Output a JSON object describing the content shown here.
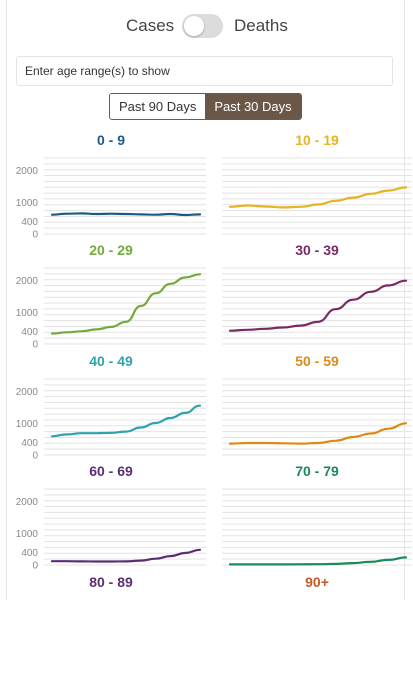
{
  "toggle": {
    "left_label": "Cases",
    "right_label": "Deaths",
    "state": "Cases"
  },
  "age_filter": {
    "placeholder": "Enter age range(s) to show",
    "value": ""
  },
  "range_buttons": [
    {
      "label": "Past 90 Days",
      "active": false
    },
    {
      "label": "Past 30 Days",
      "active": true
    }
  ],
  "colors": {
    "0 - 9": "#1d5a84",
    "10 - 19": "#e7b31f",
    "20 - 29": "#72aa3d",
    "30 - 39": "#7a2a63",
    "40 - 49": "#2fa3ad",
    "50 - 59": "#dd8a16",
    "60 - 69": "#5a2f72",
    "70 - 79": "#1a8a5a",
    "80 - 89": "#5a2f72",
    "90+": "#c45a2a"
  },
  "chart_data": [
    {
      "type": "line",
      "title": "0 - 9",
      "ylim": [
        0,
        2400
      ],
      "yticks": [
        0,
        400,
        1000,
        2000
      ],
      "series": [
        {
          "values": [
            610,
            640,
            650,
            630,
            640,
            630,
            620,
            610,
            630,
            600,
            620
          ]
        }
      ]
    },
    {
      "type": "line",
      "title": "10 - 19",
      "ylim": [
        0,
        2400
      ],
      "yticks": [
        0,
        400,
        1000,
        2000
      ],
      "series": [
        {
          "values": [
            860,
            900,
            870,
            840,
            860,
            930,
            1050,
            1150,
            1270,
            1370,
            1470
          ]
        }
      ]
    },
    {
      "type": "line",
      "title": "20 - 29",
      "ylim": [
        0,
        2400
      ],
      "yticks": [
        0,
        400,
        1000,
        2000
      ],
      "series": [
        {
          "values": [
            330,
            370,
            400,
            460,
            540,
            700,
            1200,
            1600,
            1900,
            2100,
            2200
          ]
        }
      ]
    },
    {
      "type": "line",
      "title": "30 - 39",
      "ylim": [
        0,
        2400
      ],
      "yticks": [
        0,
        400,
        1000,
        2000
      ],
      "series": [
        {
          "values": [
            420,
            450,
            480,
            520,
            580,
            700,
            1100,
            1400,
            1650,
            1850,
            2000
          ]
        }
      ]
    },
    {
      "type": "line",
      "title": "40 - 49",
      "ylim": [
        0,
        2400
      ],
      "yticks": [
        0,
        400,
        1000,
        2000
      ],
      "series": [
        {
          "values": [
            590,
            650,
            690,
            690,
            700,
            740,
            870,
            1010,
            1170,
            1330,
            1560
          ]
        }
      ]
    },
    {
      "type": "line",
      "title": "50 - 59",
      "ylim": [
        0,
        2400
      ],
      "yticks": [
        0,
        400,
        1000,
        2000
      ],
      "series": [
        {
          "values": [
            360,
            380,
            380,
            370,
            360,
            380,
            450,
            570,
            680,
            830,
            1000
          ]
        }
      ]
    },
    {
      "type": "line",
      "title": "60 - 69",
      "ylim": [
        0,
        2400
      ],
      "yticks": [
        0,
        400,
        1000,
        2000
      ],
      "series": [
        {
          "values": [
            120,
            120,
            115,
            110,
            110,
            115,
            140,
            200,
            280,
            380,
            480
          ]
        }
      ]
    },
    {
      "type": "line",
      "title": "70 - 79",
      "ylim": [
        0,
        2400
      ],
      "yticks": [
        0,
        400,
        1000,
        2000
      ],
      "series": [
        {
          "values": [
            20,
            20,
            20,
            20,
            22,
            25,
            35,
            60,
            100,
            160,
            240
          ]
        }
      ]
    },
    {
      "type": "line",
      "title": "80 - 89",
      "series": []
    },
    {
      "type": "line",
      "title": "90+",
      "series": []
    }
  ]
}
